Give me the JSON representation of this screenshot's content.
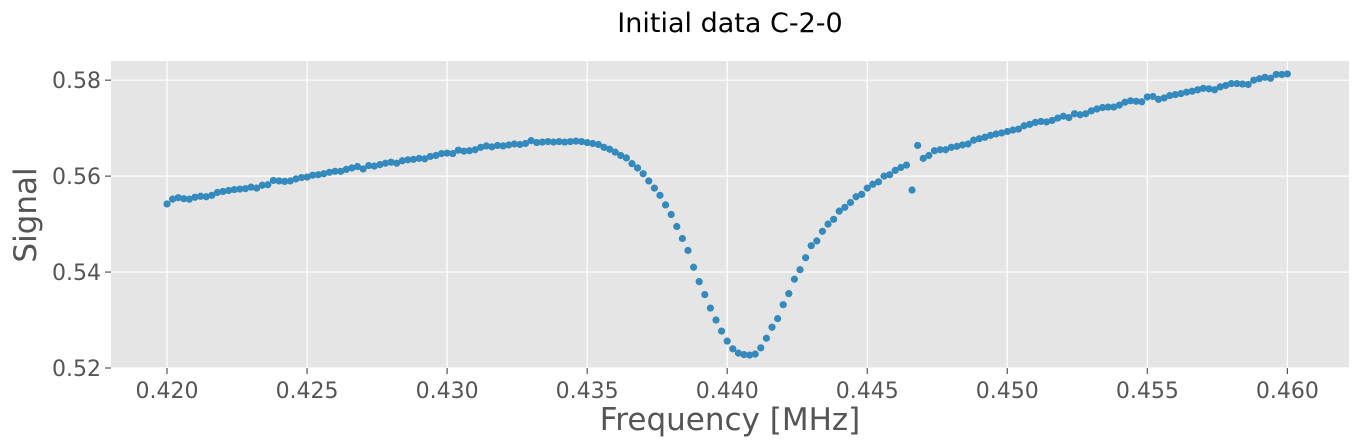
{
  "chart_data": {
    "type": "scatter",
    "title": "Initial data C-2-0",
    "xlabel": "Frequency [MHz]",
    "ylabel": "Signal",
    "xlim": [
      0.418,
      0.4622
    ],
    "ylim": [
      0.52,
      0.584
    ],
    "grid": true,
    "xticks": [
      0.42,
      0.425,
      0.43,
      0.435,
      0.44,
      0.445,
      0.45,
      0.455,
      0.46
    ],
    "xtick_labels": [
      "0.420",
      "0.425",
      "0.430",
      "0.435",
      "0.440",
      "0.445",
      "0.450",
      "0.455",
      "0.460"
    ],
    "yticks": [
      0.52,
      0.54,
      0.56,
      0.58
    ],
    "ytick_labels": [
      "0.52",
      "0.54",
      "0.56",
      "0.58"
    ],
    "colors": {
      "marker": "#348abd",
      "plot_bg": "#e5e5e5",
      "grid": "#ffffff"
    },
    "points": [
      [
        0.42,
        0.5542
      ],
      [
        0.4202,
        0.5552
      ],
      [
        0.4204,
        0.5555
      ],
      [
        0.4206,
        0.5553
      ],
      [
        0.4208,
        0.5552
      ],
      [
        0.421,
        0.5556
      ],
      [
        0.4212,
        0.5558
      ],
      [
        0.4214,
        0.5557
      ],
      [
        0.4216,
        0.556
      ],
      [
        0.4218,
        0.5566
      ],
      [
        0.422,
        0.5568
      ],
      [
        0.4222,
        0.557
      ],
      [
        0.4224,
        0.5572
      ],
      [
        0.4226,
        0.5573
      ],
      [
        0.4228,
        0.5574
      ],
      [
        0.423,
        0.5577
      ],
      [
        0.4232,
        0.5575
      ],
      [
        0.4234,
        0.5581
      ],
      [
        0.4236,
        0.5582
      ],
      [
        0.4238,
        0.5591
      ],
      [
        0.424,
        0.559
      ],
      [
        0.4242,
        0.5589
      ],
      [
        0.4244,
        0.559
      ],
      [
        0.4246,
        0.5594
      ],
      [
        0.4248,
        0.5597
      ],
      [
        0.425,
        0.5598
      ],
      [
        0.4252,
        0.5602
      ],
      [
        0.4254,
        0.5603
      ],
      [
        0.4256,
        0.5605
      ],
      [
        0.4258,
        0.5608
      ],
      [
        0.426,
        0.561
      ],
      [
        0.4262,
        0.561
      ],
      [
        0.4264,
        0.5614
      ],
      [
        0.4266,
        0.5617
      ],
      [
        0.4268,
        0.562
      ],
      [
        0.427,
        0.5615
      ],
      [
        0.4272,
        0.5622
      ],
      [
        0.4274,
        0.5621
      ],
      [
        0.4276,
        0.5624
      ],
      [
        0.4278,
        0.5627
      ],
      [
        0.428,
        0.5629
      ],
      [
        0.4282,
        0.5627
      ],
      [
        0.4284,
        0.5632
      ],
      [
        0.4286,
        0.5634
      ],
      [
        0.4288,
        0.5635
      ],
      [
        0.429,
        0.5637
      ],
      [
        0.4292,
        0.5636
      ],
      [
        0.4294,
        0.5641
      ],
      [
        0.4296,
        0.5643
      ],
      [
        0.4298,
        0.5647
      ],
      [
        0.43,
        0.5648
      ],
      [
        0.4302,
        0.5647
      ],
      [
        0.4304,
        0.5654
      ],
      [
        0.4306,
        0.5652
      ],
      [
        0.4308,
        0.5653
      ],
      [
        0.431,
        0.5655
      ],
      [
        0.4312,
        0.566
      ],
      [
        0.4314,
        0.5663
      ],
      [
        0.4316,
        0.5661
      ],
      [
        0.4318,
        0.5664
      ],
      [
        0.432,
        0.5663
      ],
      [
        0.4322,
        0.5665
      ],
      [
        0.4324,
        0.5667
      ],
      [
        0.4326,
        0.5666
      ],
      [
        0.4328,
        0.5668
      ],
      [
        0.433,
        0.5674
      ],
      [
        0.4332,
        0.567
      ],
      [
        0.4334,
        0.5671
      ],
      [
        0.4336,
        0.5672
      ],
      [
        0.4338,
        0.5671
      ],
      [
        0.434,
        0.5672
      ],
      [
        0.4342,
        0.5671
      ],
      [
        0.4344,
        0.5672
      ],
      [
        0.4346,
        0.5673
      ],
      [
        0.4348,
        0.5672
      ],
      [
        0.435,
        0.567
      ],
      [
        0.4352,
        0.5668
      ],
      [
        0.4354,
        0.5666
      ],
      [
        0.4356,
        0.566
      ],
      [
        0.4358,
        0.5656
      ],
      [
        0.436,
        0.565
      ],
      [
        0.4362,
        0.5643
      ],
      [
        0.4364,
        0.5638
      ],
      [
        0.4366,
        0.5626
      ],
      [
        0.4368,
        0.5617
      ],
      [
        0.437,
        0.5605
      ],
      [
        0.4372,
        0.559
      ],
      [
        0.4374,
        0.5575
      ],
      [
        0.4376,
        0.556
      ],
      [
        0.4378,
        0.554
      ],
      [
        0.438,
        0.552
      ],
      [
        0.4382,
        0.5495
      ],
      [
        0.4384,
        0.547
      ],
      [
        0.4386,
        0.5445
      ],
      [
        0.4388,
        0.541
      ],
      [
        0.439,
        0.538
      ],
      [
        0.4392,
        0.5353
      ],
      [
        0.4394,
        0.5325
      ],
      [
        0.4396,
        0.53
      ],
      [
        0.4398,
        0.5277
      ],
      [
        0.44,
        0.5256
      ],
      [
        0.4402,
        0.524
      ],
      [
        0.4404,
        0.5231
      ],
      [
        0.4406,
        0.5228
      ],
      [
        0.4408,
        0.5227
      ],
      [
        0.441,
        0.5229
      ],
      [
        0.4412,
        0.5242
      ],
      [
        0.4414,
        0.5262
      ],
      [
        0.4416,
        0.5285
      ],
      [
        0.4418,
        0.5303
      ],
      [
        0.442,
        0.5332
      ],
      [
        0.4422,
        0.5355
      ],
      [
        0.4424,
        0.5385
      ],
      [
        0.4426,
        0.5405
      ],
      [
        0.4428,
        0.543
      ],
      [
        0.443,
        0.5455
      ],
      [
        0.4432,
        0.5465
      ],
      [
        0.4434,
        0.5485
      ],
      [
        0.4436,
        0.55
      ],
      [
        0.4438,
        0.551
      ],
      [
        0.444,
        0.5527
      ],
      [
        0.4442,
        0.5535
      ],
      [
        0.4444,
        0.5545
      ],
      [
        0.4446,
        0.5557
      ],
      [
        0.4448,
        0.5562
      ],
      [
        0.445,
        0.5575
      ],
      [
        0.4452,
        0.5583
      ],
      [
        0.4454,
        0.5588
      ],
      [
        0.4456,
        0.56
      ],
      [
        0.4458,
        0.5603
      ],
      [
        0.446,
        0.5612
      ],
      [
        0.4462,
        0.5618
      ],
      [
        0.4464,
        0.5623
      ],
      [
        0.4466,
        0.5571
      ],
      [
        0.4468,
        0.5664
      ],
      [
        0.447,
        0.5637
      ],
      [
        0.4472,
        0.5643
      ],
      [
        0.4474,
        0.5653
      ],
      [
        0.4476,
        0.5655
      ],
      [
        0.4478,
        0.5655
      ],
      [
        0.448,
        0.566
      ],
      [
        0.4482,
        0.5662
      ],
      [
        0.4484,
        0.5665
      ],
      [
        0.4486,
        0.5667
      ],
      [
        0.4488,
        0.5675
      ],
      [
        0.449,
        0.5678
      ],
      [
        0.4492,
        0.5681
      ],
      [
        0.4494,
        0.5685
      ],
      [
        0.4496,
        0.5688
      ],
      [
        0.4498,
        0.569
      ],
      [
        0.45,
        0.5693
      ],
      [
        0.4502,
        0.5696
      ],
      [
        0.4504,
        0.5698
      ],
      [
        0.4506,
        0.5705
      ],
      [
        0.4508,
        0.5708
      ],
      [
        0.451,
        0.5712
      ],
      [
        0.4512,
        0.5714
      ],
      [
        0.4514,
        0.5713
      ],
      [
        0.4516,
        0.5716
      ],
      [
        0.4518,
        0.5721
      ],
      [
        0.452,
        0.5725
      ],
      [
        0.4522,
        0.5722
      ],
      [
        0.4524,
        0.573
      ],
      [
        0.4526,
        0.5728
      ],
      [
        0.4528,
        0.573
      ],
      [
        0.453,
        0.5736
      ],
      [
        0.4532,
        0.574
      ],
      [
        0.4534,
        0.5743
      ],
      [
        0.4536,
        0.5744
      ],
      [
        0.4538,
        0.5744
      ],
      [
        0.454,
        0.5748
      ],
      [
        0.4542,
        0.5754
      ],
      [
        0.4544,
        0.5757
      ],
      [
        0.4546,
        0.5756
      ],
      [
        0.4548,
        0.5755
      ],
      [
        0.455,
        0.5765
      ],
      [
        0.4552,
        0.5766
      ],
      [
        0.4554,
        0.576
      ],
      [
        0.4556,
        0.5763
      ],
      [
        0.4558,
        0.5768
      ],
      [
        0.456,
        0.577
      ],
      [
        0.4562,
        0.5772
      ],
      [
        0.4564,
        0.5775
      ],
      [
        0.4566,
        0.5777
      ],
      [
        0.4568,
        0.578
      ],
      [
        0.457,
        0.5783
      ],
      [
        0.4572,
        0.5782
      ],
      [
        0.4574,
        0.578
      ],
      [
        0.4576,
        0.5786
      ],
      [
        0.4578,
        0.5789
      ],
      [
        0.458,
        0.5793
      ],
      [
        0.4582,
        0.5793
      ],
      [
        0.4584,
        0.5792
      ],
      [
        0.4586,
        0.5791
      ],
      [
        0.4588,
        0.58
      ],
      [
        0.459,
        0.5803
      ],
      [
        0.4592,
        0.5806
      ],
      [
        0.4594,
        0.5804
      ],
      [
        0.4596,
        0.5812
      ],
      [
        0.4598,
        0.5812
      ],
      [
        0.46,
        0.5813
      ]
    ]
  }
}
